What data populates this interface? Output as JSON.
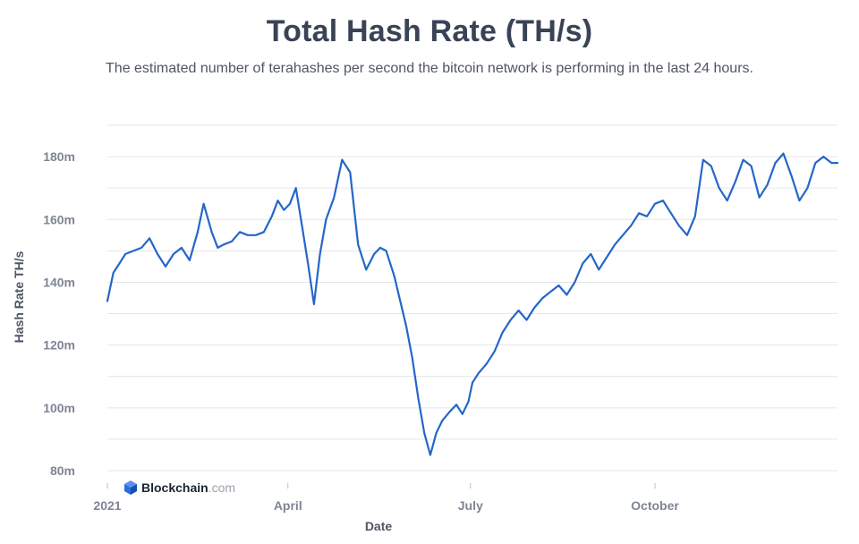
{
  "colors": {
    "line": "#2566c9",
    "grid": "#e3e6ea",
    "title": "#3a4356",
    "brand_icon": "#2a6fdb"
  },
  "watermark": {
    "name": "Blockchain",
    "suffix": ".com",
    "icon": "blockchain-cube-icon"
  },
  "chart_data": {
    "type": "line",
    "title": "Total Hash Rate (TH/s)",
    "subtitle": "The estimated number of terahashes per second the bitcoin network is performing in the last 24 hours.",
    "xlabel": "Date",
    "ylabel": "Hash Rate TH/s",
    "ylim": [
      80000000,
      190000000
    ],
    "yticks": [
      80000000,
      100000000,
      120000000,
      140000000,
      160000000,
      180000000
    ],
    "ytick_labels": [
      "80m",
      "100m",
      "120m",
      "140m",
      "160m",
      "180m"
    ],
    "xlim": [
      "2021-01-01",
      "2021-12-31"
    ],
    "xticks": [
      "2021-01-01",
      "2021-04-01",
      "2021-07-01",
      "2021-10-01"
    ],
    "xtick_labels": [
      "2021",
      "April",
      "July",
      "October"
    ],
    "grid": true,
    "series": [
      {
        "x": [
          "2021-01-01",
          "2021-01-04",
          "2021-01-07",
          "2021-01-10",
          "2021-01-14",
          "2021-01-18",
          "2021-01-22",
          "2021-01-26",
          "2021-01-30",
          "2021-02-03",
          "2021-02-07",
          "2021-02-11",
          "2021-02-15",
          "2021-02-18",
          "2021-02-22",
          "2021-02-25",
          "2021-02-28",
          "2021-03-04",
          "2021-03-08",
          "2021-03-12",
          "2021-03-16",
          "2021-03-20",
          "2021-03-24",
          "2021-03-27",
          "2021-03-30",
          "2021-04-02",
          "2021-04-05",
          "2021-04-08",
          "2021-04-11",
          "2021-04-14",
          "2021-04-17",
          "2021-04-20",
          "2021-04-24",
          "2021-04-28",
          "2021-05-02",
          "2021-05-06",
          "2021-05-10",
          "2021-05-14",
          "2021-05-17",
          "2021-05-20",
          "2021-05-24",
          "2021-05-27",
          "2021-05-30",
          "2021-06-02",
          "2021-06-05",
          "2021-06-08",
          "2021-06-11",
          "2021-06-14",
          "2021-06-17",
          "2021-06-21",
          "2021-06-24",
          "2021-06-27",
          "2021-06-30",
          "2021-07-02",
          "2021-07-05",
          "2021-07-09",
          "2021-07-13",
          "2021-07-17",
          "2021-07-21",
          "2021-07-25",
          "2021-07-29",
          "2021-08-02",
          "2021-08-06",
          "2021-08-10",
          "2021-08-14",
          "2021-08-18",
          "2021-08-22",
          "2021-08-26",
          "2021-08-30",
          "2021-09-03",
          "2021-09-07",
          "2021-09-11",
          "2021-09-15",
          "2021-09-19",
          "2021-09-23",
          "2021-09-27",
          "2021-10-01",
          "2021-10-05",
          "2021-10-09",
          "2021-10-13",
          "2021-10-17",
          "2021-10-21",
          "2021-10-25",
          "2021-10-29",
          "2021-11-02",
          "2021-11-06",
          "2021-11-10",
          "2021-11-14",
          "2021-11-18",
          "2021-11-22",
          "2021-11-26",
          "2021-11-30",
          "2021-12-04",
          "2021-12-08",
          "2021-12-12",
          "2021-12-16",
          "2021-12-20",
          "2021-12-24",
          "2021-12-28",
          "2021-12-31"
        ],
        "values": [
          134000000,
          143000000,
          146000000,
          149000000,
          150000000,
          151000000,
          154000000,
          149000000,
          145000000,
          149000000,
          151000000,
          147000000,
          156000000,
          165000000,
          156000000,
          151000000,
          152000000,
          153000000,
          156000000,
          155000000,
          155000000,
          156000000,
          161000000,
          166000000,
          163000000,
          165000000,
          170000000,
          158000000,
          146000000,
          133000000,
          149000000,
          160000000,
          167000000,
          179000000,
          175000000,
          152000000,
          144000000,
          149000000,
          151000000,
          150000000,
          142000000,
          134000000,
          126000000,
          116000000,
          103000000,
          92000000,
          85000000,
          92000000,
          96000000,
          99000000,
          101000000,
          98000000,
          102000000,
          108000000,
          111000000,
          114000000,
          118000000,
          124000000,
          128000000,
          131000000,
          128000000,
          132000000,
          135000000,
          137000000,
          139000000,
          136000000,
          140000000,
          146000000,
          149000000,
          144000000,
          148000000,
          152000000,
          155000000,
          158000000,
          162000000,
          161000000,
          165000000,
          166000000,
          162000000,
          158000000,
          155000000,
          161000000,
          179000000,
          177000000,
          170000000,
          166000000,
          172000000,
          179000000,
          177000000,
          167000000,
          171000000,
          178000000,
          181000000,
          174000000,
          166000000,
          170000000,
          178000000,
          180000000,
          178000000,
          178000000
        ]
      }
    ]
  }
}
